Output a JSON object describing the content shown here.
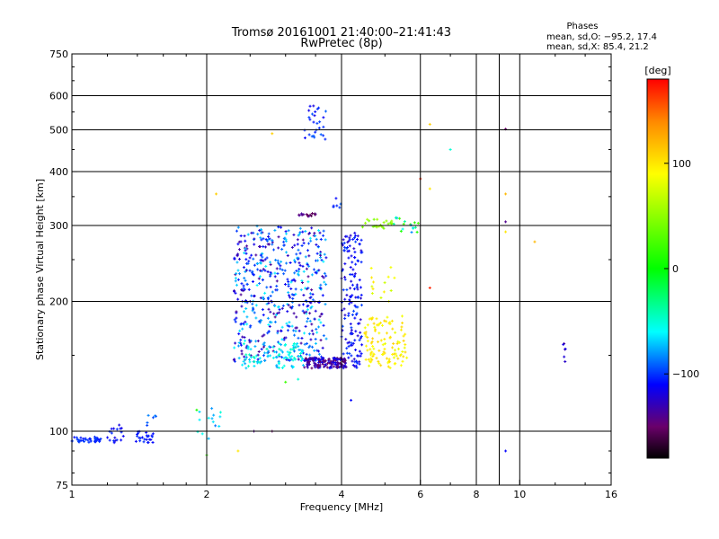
{
  "chart_data": {
    "type": "scatter",
    "title": "Tromsø 20161001 21:40:00–21:41:43",
    "subtitle": "RwPretec (8p)",
    "phase_info": {
      "heading": "Phases",
      "line_o": "mean, sd,O: −95.2, 17.4",
      "line_x": "mean, sd,X: 85.4, 21.2"
    },
    "xlabel": "Frequency [MHz]",
    "ylabel": "Stationary phase Virtual Height [km]",
    "x_scale": "log",
    "y_scale": "log",
    "xlim": [
      1,
      16
    ],
    "ylim": [
      75,
      750
    ],
    "x_ticks": [
      {
        "value": 1,
        "label": "1"
      },
      {
        "value": 2,
        "label": "2"
      },
      {
        "value": 4,
        "label": "4"
      },
      {
        "value": 6,
        "label": "6"
      },
      {
        "value": 8,
        "label": "8"
      },
      {
        "value": 10,
        "label": "10"
      },
      {
        "value": 16,
        "label": "16"
      }
    ],
    "x_minor_ticks": [
      9
    ],
    "y_ticks": [
      {
        "value": 75,
        "label": "75"
      },
      {
        "value": 100,
        "label": "100"
      },
      {
        "value": 200,
        "label": "200"
      },
      {
        "value": 300,
        "label": "300"
      },
      {
        "value": 400,
        "label": "400"
      },
      {
        "value": 500,
        "label": "500"
      },
      {
        "value": 600,
        "label": "600"
      },
      {
        "value": 750,
        "label": "750"
      }
    ],
    "grid": true,
    "colorbar": {
      "title": "[deg]",
      "range": [
        -180,
        180
      ],
      "ticks": [
        {
          "value": 100,
          "label": "100"
        },
        {
          "value": 0,
          "label": "0"
        },
        {
          "value": -100,
          "label": "−100"
        }
      ],
      "stops": [
        {
          "value": -180,
          "color": "#000000"
        },
        {
          "value": -150,
          "color": "#6a006a"
        },
        {
          "value": -110,
          "color": "#0000ff"
        },
        {
          "value": -60,
          "color": "#00ffff"
        },
        {
          "value": 0,
          "color": "#00ff00"
        },
        {
          "value": 90,
          "color": "#ffff00"
        },
        {
          "value": 140,
          "color": "#ff8800"
        },
        {
          "value": 180,
          "color": "#ff0000"
        }
      ]
    },
    "clusters": [
      {
        "f": [
          1.0,
          1.16
        ],
        "h": [
          94,
          97
        ],
        "phase": [
          -110,
          -95
        ],
        "n": 40
      },
      {
        "f": [
          1.2,
          1.33
        ],
        "h": [
          94,
          105
        ],
        "phase": [
          -125,
          -100
        ],
        "n": 18
      },
      {
        "f": [
          1.36,
          1.52
        ],
        "h": [
          94,
          100
        ],
        "phase": [
          -115,
          -100
        ],
        "n": 25
      },
      {
        "f": [
          1.45,
          1.55
        ],
        "h": [
          102,
          110
        ],
        "phase": [
          -100,
          -80
        ],
        "n": 6
      },
      {
        "f": [
          1.9,
          2.15
        ],
        "h": [
          95,
          115
        ],
        "phase": [
          -90,
          -40
        ],
        "n": 14
      },
      {
        "f": [
          2.3,
          3.7
        ],
        "h": [
          145,
          300
        ],
        "phase": [
          -140,
          -60
        ],
        "n": 520
      },
      {
        "f": [
          2.4,
          3.4
        ],
        "h": [
          140,
          160
        ],
        "phase": [
          -80,
          -40
        ],
        "n": 90
      },
      {
        "f": [
          3.3,
          4.1
        ],
        "h": [
          140,
          148
        ],
        "phase": [
          -155,
          -110
        ],
        "n": 160
      },
      {
        "f": [
          4.0,
          4.45
        ],
        "h": [
          140,
          290
        ],
        "phase": [
          -125,
          -95
        ],
        "n": 150
      },
      {
        "f": [
          4.5,
          5.6
        ],
        "h": [
          140,
          185
        ],
        "phase": [
          80,
          110
        ],
        "n": 110
      },
      {
        "f": [
          4.6,
          5.3
        ],
        "h": [
          200,
          240
        ],
        "phase": [
          70,
          100
        ],
        "n": 14
      },
      {
        "f": [
          4.4,
          5.2
        ],
        "h": [
          295,
          310
        ],
        "phase": [
          40,
          60
        ],
        "n": 22
      },
      {
        "f": [
          5.2,
          6.0
        ],
        "h": [
          288,
          315
        ],
        "phase": [
          -90,
          30
        ],
        "n": 18
      },
      {
        "f": [
          3.2,
          3.5
        ],
        "h": [
          315,
          320
        ],
        "phase": [
          -160,
          -130
        ],
        "n": 16
      },
      {
        "f": [
          3.3,
          3.7
        ],
        "h": [
          470,
          570
        ],
        "phase": [
          -120,
          -90
        ],
        "n": 28
      },
      {
        "f": [
          3.8,
          4.0
        ],
        "h": [
          330,
          348
        ],
        "phase": [
          -110,
          -90
        ],
        "n": 6
      },
      {
        "f": [
          2.4,
          2.8
        ],
        "h": [
          210,
          280
        ],
        "phase": [
          -110,
          -90
        ],
        "n": 20
      },
      {
        "f": [
          12.5,
          12.7
        ],
        "h": [
          142,
          162
        ],
        "phase": [
          -140,
          -110
        ],
        "n": 6
      }
    ],
    "points": [
      {
        "f": 9.3,
        "h": 502,
        "phase": -150
      },
      {
        "f": 9.3,
        "h": 306,
        "phase": -140
      },
      {
        "f": 9.3,
        "h": 355,
        "phase": 120
      },
      {
        "f": 9.3,
        "h": 90,
        "phase": -110
      },
      {
        "f": 9.3,
        "h": 290,
        "phase": 100
      },
      {
        "f": 10.8,
        "h": 275,
        "phase": 120
      },
      {
        "f": 6.3,
        "h": 515,
        "phase": 110
      },
      {
        "f": 6.3,
        "h": 365,
        "phase": 100
      },
      {
        "f": 6.3,
        "h": 215,
        "phase": 170
      },
      {
        "f": 7.0,
        "h": 450,
        "phase": -50
      },
      {
        "f": 6.0,
        "h": 385,
        "phase": 170
      },
      {
        "f": 2.8,
        "h": 490,
        "phase": 110
      },
      {
        "f": 2.1,
        "h": 355,
        "phase": 110
      },
      {
        "f": 2.55,
        "h": 100,
        "phase": -140
      },
      {
        "f": 2.8,
        "h": 100,
        "phase": -150
      },
      {
        "f": 2.35,
        "h": 90,
        "phase": 100
      },
      {
        "f": 2.0,
        "h": 88,
        "phase": 20
      },
      {
        "f": 1.9,
        "h": 112,
        "phase": 10
      },
      {
        "f": 3.0,
        "h": 130,
        "phase": 20
      },
      {
        "f": 3.2,
        "h": 132,
        "phase": -50
      },
      {
        "f": 4.2,
        "h": 118,
        "phase": -110
      }
    ]
  }
}
